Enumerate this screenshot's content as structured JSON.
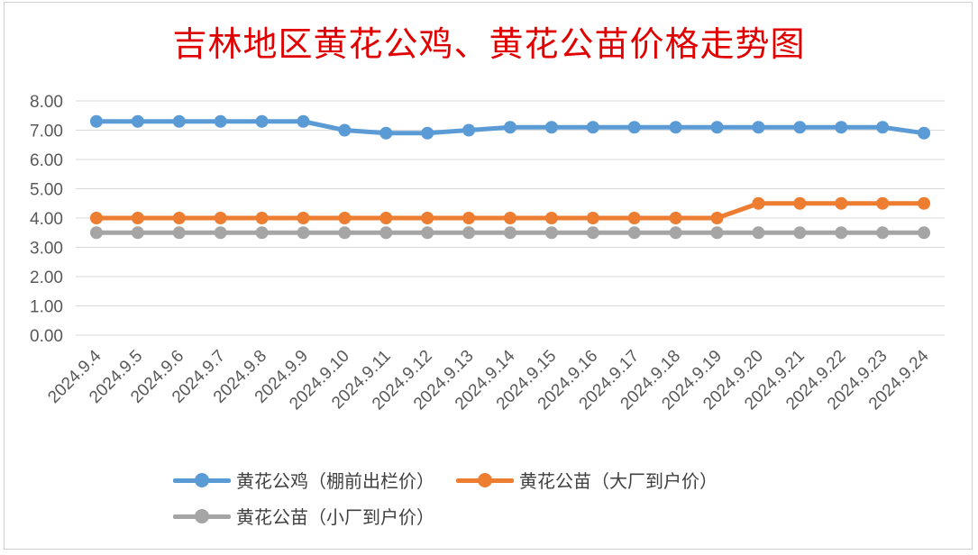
{
  "chart_data": {
    "type": "line",
    "title": "吉林地区黄花公鸡、黄花公苗价格走势图",
    "categories": [
      "2024.9.4",
      "2024.9.5",
      "2024.9.6",
      "2024.9.7",
      "2024.9.8",
      "2024.9.9",
      "2024.9.10",
      "2024.9.11",
      "2024.9.12",
      "2024.9.13",
      "2024.9.14",
      "2024.9.15",
      "2024.9.16",
      "2024.9.17",
      "2024.9.18",
      "2024.9.19",
      "2024.9.20",
      "2024.9.21",
      "2024.9.22",
      "2024.9.23",
      "2024.9.24"
    ],
    "y_ticks": [
      "0.00",
      "1.00",
      "2.00",
      "3.00",
      "4.00",
      "5.00",
      "6.00",
      "7.00",
      "8.00"
    ],
    "ylim": [
      0,
      8
    ],
    "grid": true,
    "legend_position": "bottom",
    "series": [
      {
        "name": "黄花公鸡（棚前出栏价）",
        "color": "#5b9bd5",
        "values": [
          7.3,
          7.3,
          7.3,
          7.3,
          7.3,
          7.3,
          7.0,
          6.9,
          6.9,
          7.0,
          7.1,
          7.1,
          7.1,
          7.1,
          7.1,
          7.1,
          7.1,
          7.1,
          7.1,
          7.1,
          6.9
        ]
      },
      {
        "name": "黄花公苗（大厂到户价）",
        "color": "#ed7d31",
        "values": [
          4.0,
          4.0,
          4.0,
          4.0,
          4.0,
          4.0,
          4.0,
          4.0,
          4.0,
          4.0,
          4.0,
          4.0,
          4.0,
          4.0,
          4.0,
          4.0,
          4.5,
          4.5,
          4.5,
          4.5,
          4.5
        ]
      },
      {
        "name": "黄花公苗（小厂到户价）",
        "color": "#a5a5a5",
        "values": [
          3.5,
          3.5,
          3.5,
          3.5,
          3.5,
          3.5,
          3.5,
          3.5,
          3.5,
          3.5,
          3.5,
          3.5,
          3.5,
          3.5,
          3.5,
          3.5,
          3.5,
          3.5,
          3.5,
          3.5,
          3.5
        ]
      }
    ]
  }
}
